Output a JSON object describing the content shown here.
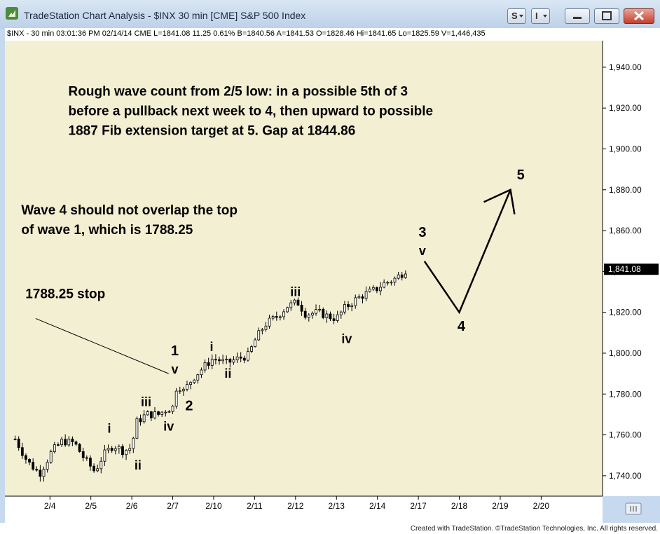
{
  "window": {
    "title": "TradeStation Chart Analysis - $INX 30 min [CME] S&P 500 Index",
    "buttons": [
      {
        "name": "s-menu-button",
        "glyph": "S",
        "caret": true
      },
      {
        "name": "i-menu-button",
        "glyph": "I",
        "caret": true
      }
    ],
    "controls": [
      "minimize-icon",
      "maximize-icon",
      "close-icon"
    ]
  },
  "status_line": "$INX - 30 min  03:01:36 PM  02/14/14  CME  L=1841.08  11.25  0.61%  B=1840.56  A=1841.53  O=1828.46  Hi=1841.65  Lo=1825.59  V=1,446,435",
  "footer": "Created with TradeStation. ©TradeStation Technologies, Inc. All rights reserved.",
  "colors": {
    "chart_bg": "#f3efd2",
    "axis_bg": "#ffffff",
    "frame": "#c7d9ee",
    "bar": "#000000",
    "last_price_tag": "#000000"
  },
  "chart_data": {
    "type": "bar",
    "title": "",
    "xlabel": "",
    "ylabel": "",
    "x_range": [
      -2.2,
      27.0
    ],
    "ylim": [
      1730,
      1953
    ],
    "y_ticks": [
      1740,
      1760,
      1780,
      1800,
      1820,
      1840,
      1860,
      1880,
      1900,
      1920,
      1940
    ],
    "y_tick_labels": [
      "1,740.00",
      "1,760.00",
      "1,780.00",
      "1,800.00",
      "1,820.00",
      "1,840.00",
      "1,860.00",
      "1,880.00",
      "1,900.00",
      "1,920.00",
      "1,940.00"
    ],
    "x_ticks": [
      {
        "x": 0,
        "label": "2/4"
      },
      {
        "x": 2,
        "label": "2/5"
      },
      {
        "x": 4,
        "label": "2/6"
      },
      {
        "x": 6,
        "label": "2/7"
      },
      {
        "x": 8,
        "label": "2/10"
      },
      {
        "x": 10,
        "label": "2/11"
      },
      {
        "x": 12,
        "label": "2/12"
      },
      {
        "x": 14,
        "label": "2/13"
      },
      {
        "x": 16,
        "label": "2/14"
      },
      {
        "x": 18,
        "label": "2/17"
      },
      {
        "x": 20,
        "label": "2/18"
      },
      {
        "x": 22,
        "label": "2/19"
      },
      {
        "x": 24,
        "label": "2/20"
      }
    ],
    "price_path": [
      [
        -1.7,
        1758
      ],
      [
        -1.1,
        1747
      ],
      [
        -0.5,
        1741
      ],
      [
        0.1,
        1752
      ],
      [
        0.6,
        1757
      ],
      [
        1.2,
        1756
      ],
      [
        1.7,
        1748
      ],
      [
        2.2,
        1742
      ],
      [
        2.6,
        1750
      ],
      [
        3.1,
        1755
      ],
      [
        3.6,
        1752
      ],
      [
        4.0,
        1754
      ],
      [
        4.2,
        1766
      ],
      [
        4.7,
        1770
      ],
      [
        5.3,
        1770
      ],
      [
        5.6,
        1772
      ],
      [
        6.1,
        1774
      ],
      [
        6.2,
        1786
      ],
      [
        6.5,
        1781
      ],
      [
        7.0,
        1788
      ],
      [
        7.5,
        1793
      ],
      [
        7.9,
        1797
      ],
      [
        8.2,
        1797
      ],
      [
        8.6,
        1795
      ],
      [
        9.1,
        1797
      ],
      [
        9.7,
        1799
      ],
      [
        10.0,
        1806
      ],
      [
        10.5,
        1814
      ],
      [
        11.1,
        1818
      ],
      [
        11.6,
        1823
      ],
      [
        12.1,
        1825
      ],
      [
        12.5,
        1819
      ],
      [
        13.1,
        1820
      ],
      [
        13.6,
        1818
      ],
      [
        14.0,
        1817
      ],
      [
        14.4,
        1822
      ],
      [
        14.9,
        1826
      ],
      [
        15.4,
        1829
      ],
      [
        15.9,
        1831
      ],
      [
        16.3,
        1834
      ],
      [
        16.8,
        1836
      ],
      [
        17.2,
        1839
      ],
      [
        17.4,
        1841
      ]
    ],
    "last_price_label": "1,841.08",
    "last_price_value": 1841.08,
    "projection": [
      [
        18.3,
        1845
      ],
      [
        20.0,
        1820
      ],
      [
        22.5,
        1880
      ]
    ],
    "projection_arrow_head": [
      [
        21.2,
        1874
      ],
      [
        22.5,
        1880
      ],
      [
        22.7,
        1868
      ]
    ],
    "stop_line": [
      [
        -0.7,
        1817
      ],
      [
        5.8,
        1790
      ]
    ],
    "wave_labels": [
      {
        "text": "i",
        "x": 2.9,
        "y": 1761,
        "size": "small"
      },
      {
        "text": "ii",
        "x": 4.3,
        "y": 1743,
        "size": "small"
      },
      {
        "text": "iii",
        "x": 4.7,
        "y": 1774,
        "size": "small"
      },
      {
        "text": "iv",
        "x": 5.8,
        "y": 1762,
        "size": "small"
      },
      {
        "text": "v",
        "x": 6.1,
        "y": 1790,
        "size": "small"
      },
      {
        "text": "1",
        "x": 6.1,
        "y": 1799,
        "size": "large"
      },
      {
        "text": "2",
        "x": 6.8,
        "y": 1772,
        "size": "large"
      },
      {
        "text": "i",
        "x": 7.9,
        "y": 1801,
        "size": "small"
      },
      {
        "text": "ii",
        "x": 8.7,
        "y": 1788,
        "size": "small"
      },
      {
        "text": "iii",
        "x": 12.0,
        "y": 1828,
        "size": "small"
      },
      {
        "text": "iv",
        "x": 14.5,
        "y": 1805,
        "size": "small"
      },
      {
        "text": "3",
        "x": 18.2,
        "y": 1857,
        "size": "large"
      },
      {
        "text": "v",
        "x": 18.2,
        "y": 1848,
        "size": "small"
      },
      {
        "text": "4",
        "x": 20.1,
        "y": 1811,
        "size": "large"
      },
      {
        "text": "5",
        "x": 23.0,
        "y": 1885,
        "size": "large"
      }
    ],
    "annotations": [
      {
        "name": "fib-target-note",
        "x": 0.9,
        "y": 1926,
        "lines": [
          "Rough wave count from 2/5 low: in a possible 5th of 3",
          "before a pullback next week to 4, then upward to possible",
          "1887 Fib extension target at 5. Gap at 1844.86"
        ]
      },
      {
        "name": "wave4-note",
        "x": -1.4,
        "y": 1868,
        "lines": [
          "Wave 4 should not overlap the top",
          "of wave 1, which is 1788.25"
        ]
      },
      {
        "name": "stop-note",
        "x": -1.2,
        "y": 1827,
        "lines": [
          "1788.25 stop"
        ]
      }
    ],
    "grid": false,
    "legend": "none"
  }
}
